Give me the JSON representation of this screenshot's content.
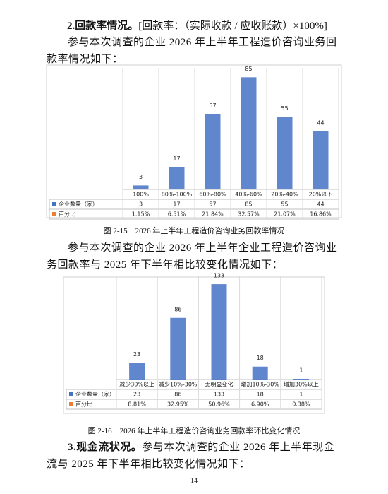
{
  "heading_2": {
    "label": "2.回款率情况。",
    "note": "[回款率：（实际收款 / 应收账款）×100%]"
  },
  "paragraph_1": "参与本次调查的企业 2026 年上半年工程造价咨询业务回款率情况如下：",
  "charts": [
    {
      "type": "bar",
      "categories": [
        "100%",
        "80%-100%",
        "60%-80%",
        "40%-60%",
        "20%-40%",
        "20%以下"
      ],
      "series": [
        {
          "name": "企业数量（家）",
          "color": "#4472c4",
          "values": [
            3,
            17,
            57,
            85,
            55,
            44
          ]
        },
        {
          "name": "百分比",
          "color": "#ed7d31",
          "values": [
            1.15,
            6.51,
            21.84,
            32.57,
            21.07,
            16.86
          ],
          "value_labels": [
            "1.15%",
            "6.51%",
            "21.84%",
            "32.57%",
            "21.07%",
            "16.86%"
          ]
        }
      ],
      "ylim": [
        0,
        90
      ],
      "caption": "图 2-15　2026 年上半年工程造价咨询业务回款率情况"
    },
    {
      "type": "bar",
      "categories": [
        "减少30%以上",
        "减少10%-30%",
        "无明显变化",
        "增加10%-30%",
        "增加30%以上"
      ],
      "series": [
        {
          "name": "企业数量（家）",
          "color": "#4472c4",
          "values": [
            23,
            86,
            133,
            18,
            1
          ]
        },
        {
          "name": "百分比",
          "color": "#ed7d31",
          "values": [
            8.81,
            32.95,
            50.96,
            6.9,
            0.38
          ],
          "value_labels": [
            "8.81%",
            "32.95%",
            "50.96%",
            "6.90%",
            "0.38%"
          ]
        }
      ],
      "ylim": [
        0,
        140
      ],
      "caption": "图 2-16　2026 年上半年工程造价咨询业务回款率环比变化情况"
    }
  ],
  "paragraph_2": "参与本次调查的企业 2026 年上半年企业工程造价咨询业务回款率与 2025 年下半年相比较变化情况如下：",
  "heading_3": {
    "label": "3.现金流状况。",
    "text": "参与本次调查的企业 2026 年上半年现金流与 2025 年下半年相比较变化情况如下："
  },
  "page_number": "14"
}
